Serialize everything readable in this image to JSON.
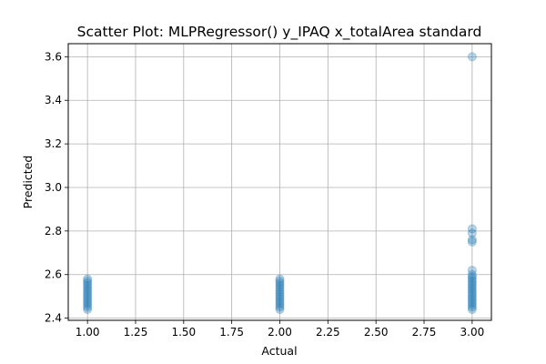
{
  "chart_data": {
    "type": "scatter",
    "title": "Scatter Plot: MLPRegressor() y_IPAQ x_totalArea standard",
    "xlabel": "Actual",
    "ylabel": "Predicted",
    "xlim": [
      0.9,
      3.1
    ],
    "ylim": [
      2.39,
      3.66
    ],
    "xticks": [
      1.0,
      1.25,
      1.5,
      1.75,
      2.0,
      2.25,
      2.5,
      2.75,
      3.0
    ],
    "xtick_labels": [
      "1.00",
      "1.25",
      "1.50",
      "1.75",
      "2.00",
      "2.25",
      "2.50",
      "2.75",
      "3.00"
    ],
    "yticks": [
      2.4,
      2.6,
      2.8,
      3.0,
      3.2,
      3.4,
      3.6
    ],
    "ytick_labels": [
      "2.4",
      "2.6",
      "2.8",
      "3.0",
      "3.2",
      "3.4",
      "3.6"
    ],
    "grid": true,
    "marker_color": "#1f77b4",
    "marker_alpha": 0.3,
    "points": [
      {
        "x": 1.0,
        "y": 2.44
      },
      {
        "x": 1.0,
        "y": 2.45
      },
      {
        "x": 1.0,
        "y": 2.46
      },
      {
        "x": 1.0,
        "y": 2.47
      },
      {
        "x": 1.0,
        "y": 2.48
      },
      {
        "x": 1.0,
        "y": 2.49
      },
      {
        "x": 1.0,
        "y": 2.5
      },
      {
        "x": 1.0,
        "y": 2.51
      },
      {
        "x": 1.0,
        "y": 2.52
      },
      {
        "x": 1.0,
        "y": 2.53
      },
      {
        "x": 1.0,
        "y": 2.54
      },
      {
        "x": 1.0,
        "y": 2.55
      },
      {
        "x": 1.0,
        "y": 2.56
      },
      {
        "x": 1.0,
        "y": 2.57
      },
      {
        "x": 1.0,
        "y": 2.58
      },
      {
        "x": 2.0,
        "y": 2.44
      },
      {
        "x": 2.0,
        "y": 2.45
      },
      {
        "x": 2.0,
        "y": 2.46
      },
      {
        "x": 2.0,
        "y": 2.47
      },
      {
        "x": 2.0,
        "y": 2.48
      },
      {
        "x": 2.0,
        "y": 2.49
      },
      {
        "x": 2.0,
        "y": 2.5
      },
      {
        "x": 2.0,
        "y": 2.51
      },
      {
        "x": 2.0,
        "y": 2.52
      },
      {
        "x": 2.0,
        "y": 2.53
      },
      {
        "x": 2.0,
        "y": 2.54
      },
      {
        "x": 2.0,
        "y": 2.55
      },
      {
        "x": 2.0,
        "y": 2.56
      },
      {
        "x": 2.0,
        "y": 2.57
      },
      {
        "x": 2.0,
        "y": 2.58
      },
      {
        "x": 3.0,
        "y": 2.44
      },
      {
        "x": 3.0,
        "y": 2.45
      },
      {
        "x": 3.0,
        "y": 2.46
      },
      {
        "x": 3.0,
        "y": 2.47
      },
      {
        "x": 3.0,
        "y": 2.48
      },
      {
        "x": 3.0,
        "y": 2.49
      },
      {
        "x": 3.0,
        "y": 2.5
      },
      {
        "x": 3.0,
        "y": 2.51
      },
      {
        "x": 3.0,
        "y": 2.52
      },
      {
        "x": 3.0,
        "y": 2.53
      },
      {
        "x": 3.0,
        "y": 2.54
      },
      {
        "x": 3.0,
        "y": 2.55
      },
      {
        "x": 3.0,
        "y": 2.56
      },
      {
        "x": 3.0,
        "y": 2.57
      },
      {
        "x": 3.0,
        "y": 2.58
      },
      {
        "x": 3.0,
        "y": 2.59
      },
      {
        "x": 3.0,
        "y": 2.6
      },
      {
        "x": 3.0,
        "y": 2.62
      },
      {
        "x": 3.0,
        "y": 2.75
      },
      {
        "x": 3.0,
        "y": 2.76
      },
      {
        "x": 3.0,
        "y": 2.79
      },
      {
        "x": 3.0,
        "y": 2.81
      },
      {
        "x": 3.0,
        "y": 3.6
      }
    ]
  }
}
